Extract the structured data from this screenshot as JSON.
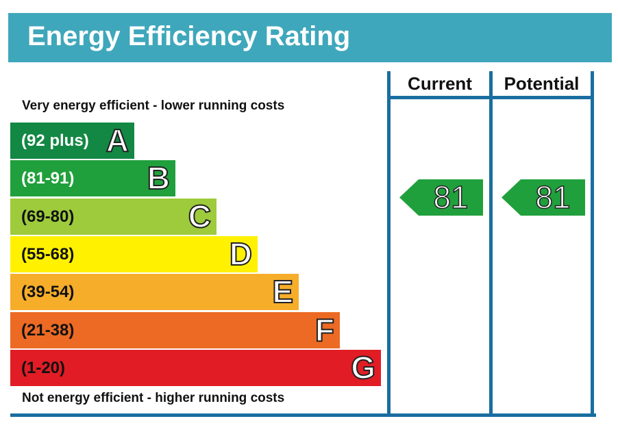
{
  "title": "Energy Efficiency Rating",
  "columns": {
    "current": "Current",
    "potential": "Potential"
  },
  "top_caption": "Very energy efficient - lower running costs",
  "bottom_caption": "Not energy efficient - higher running costs",
  "chart_data": {
    "type": "bar",
    "categories": [
      "A",
      "B",
      "C",
      "D",
      "E",
      "F",
      "G"
    ],
    "bands": [
      {
        "letter": "A",
        "range": "(92 plus)",
        "color": "#138844",
        "text_color": "#ffffff"
      },
      {
        "letter": "B",
        "range": "(81-91)",
        "color": "#20a03c",
        "text_color": "#ffffff"
      },
      {
        "letter": "C",
        "range": "(69-80)",
        "color": "#9dcb3c",
        "text_color": "#111111"
      },
      {
        "letter": "D",
        "range": "(55-68)",
        "color": "#fff100",
        "text_color": "#111111"
      },
      {
        "letter": "E",
        "range": "(39-54)",
        "color": "#f5ad2a",
        "text_color": "#111111"
      },
      {
        "letter": "F",
        "range": "(21-38)",
        "color": "#ec6a23",
        "text_color": "#111111"
      },
      {
        "letter": "G",
        "range": "(1-20)",
        "color": "#e11c25",
        "text_color": "#111111"
      }
    ],
    "current": {
      "value": 81,
      "band": "B",
      "color": "#20a03c"
    },
    "potential": {
      "value": 81,
      "band": "B",
      "color": "#20a03c"
    }
  },
  "colors": {
    "header": "#3fa7bb",
    "frame": "#1a6ea0"
  }
}
